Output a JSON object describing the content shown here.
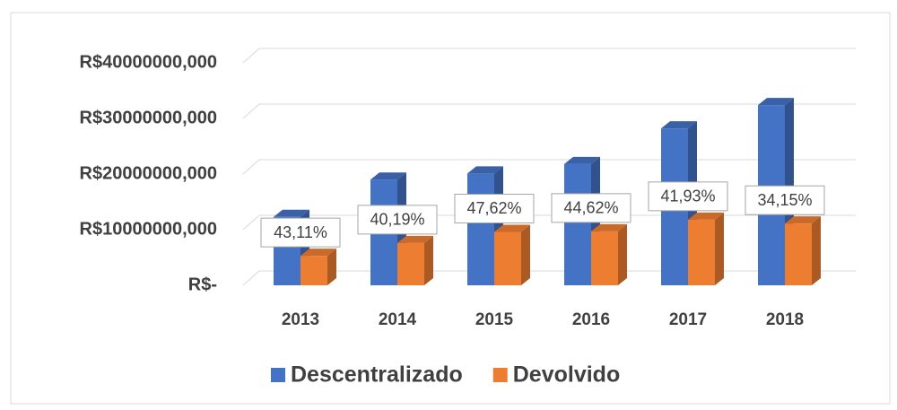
{
  "chart_data": {
    "type": "bar3d",
    "categories": [
      "2013",
      "2014",
      "2015",
      "2016",
      "2017",
      "2018"
    ],
    "series": [
      {
        "name": "Descentralizado",
        "color": "#4472c4",
        "values": [
          12300000,
          19000000,
          20100000,
          21800000,
          28200000,
          32400000
        ]
      },
      {
        "name": "Devolvido",
        "color": "#ed7d31",
        "values": [
          5300000,
          7600000,
          9600000,
          9700000,
          11800000,
          11100000
        ]
      }
    ],
    "annotations": [
      "43,11%",
      "40,19%",
      "47,62%",
      "44,62%",
      "41,93%",
      "34,15%"
    ],
    "ylim": [
      0,
      40000000
    ],
    "yticks": [
      {
        "value": 0,
        "label": "R$-"
      },
      {
        "value": 10000000,
        "label": "R$10000000,000"
      },
      {
        "value": 20000000,
        "label": "R$20000000,000"
      },
      {
        "value": 30000000,
        "label": "R$30000000,000"
      },
      {
        "value": 40000000,
        "label": "R$40000000,000"
      }
    ],
    "grid": true,
    "legend": "bottom"
  }
}
